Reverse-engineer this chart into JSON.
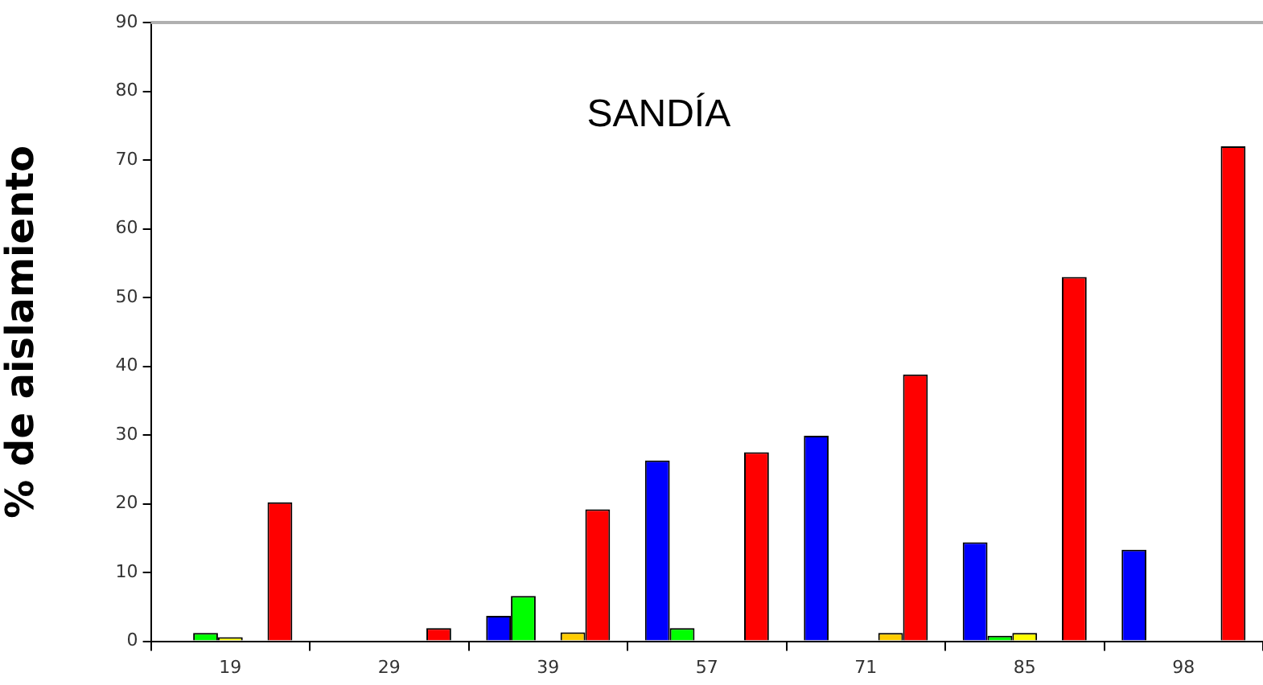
{
  "chart_data": {
    "type": "bar",
    "title": "SANDÍA",
    "ylabel": "% de aislamiento",
    "categories": [
      "19",
      "29",
      "39",
      "57",
      "71",
      "85",
      "98"
    ],
    "series": [
      {
        "color": "#0000ff",
        "values": [
          0,
          0,
          3.7,
          26.3,
          29.9,
          14.4,
          13.3
        ]
      },
      {
        "color": "#00ff00",
        "values": [
          1.2,
          0,
          6.6,
          1.9,
          0,
          0.8,
          0
        ]
      },
      {
        "color": "#ffff00",
        "values": [
          0.6,
          0,
          0,
          0,
          0,
          1.2,
          0
        ]
      },
      {
        "color": "#ffcc00",
        "values": [
          0,
          0,
          1.3,
          0,
          1.2,
          0,
          0
        ]
      },
      {
        "color": "#ff0000",
        "values": [
          20.2,
          1.9,
          19.2,
          27.5,
          38.8,
          53,
          72
        ]
      }
    ],
    "ylim": [
      0,
      90
    ],
    "yticks": [
      0,
      10,
      20,
      30,
      40,
      50,
      60,
      70,
      80,
      90
    ],
    "grid": false,
    "legend": false
  }
}
